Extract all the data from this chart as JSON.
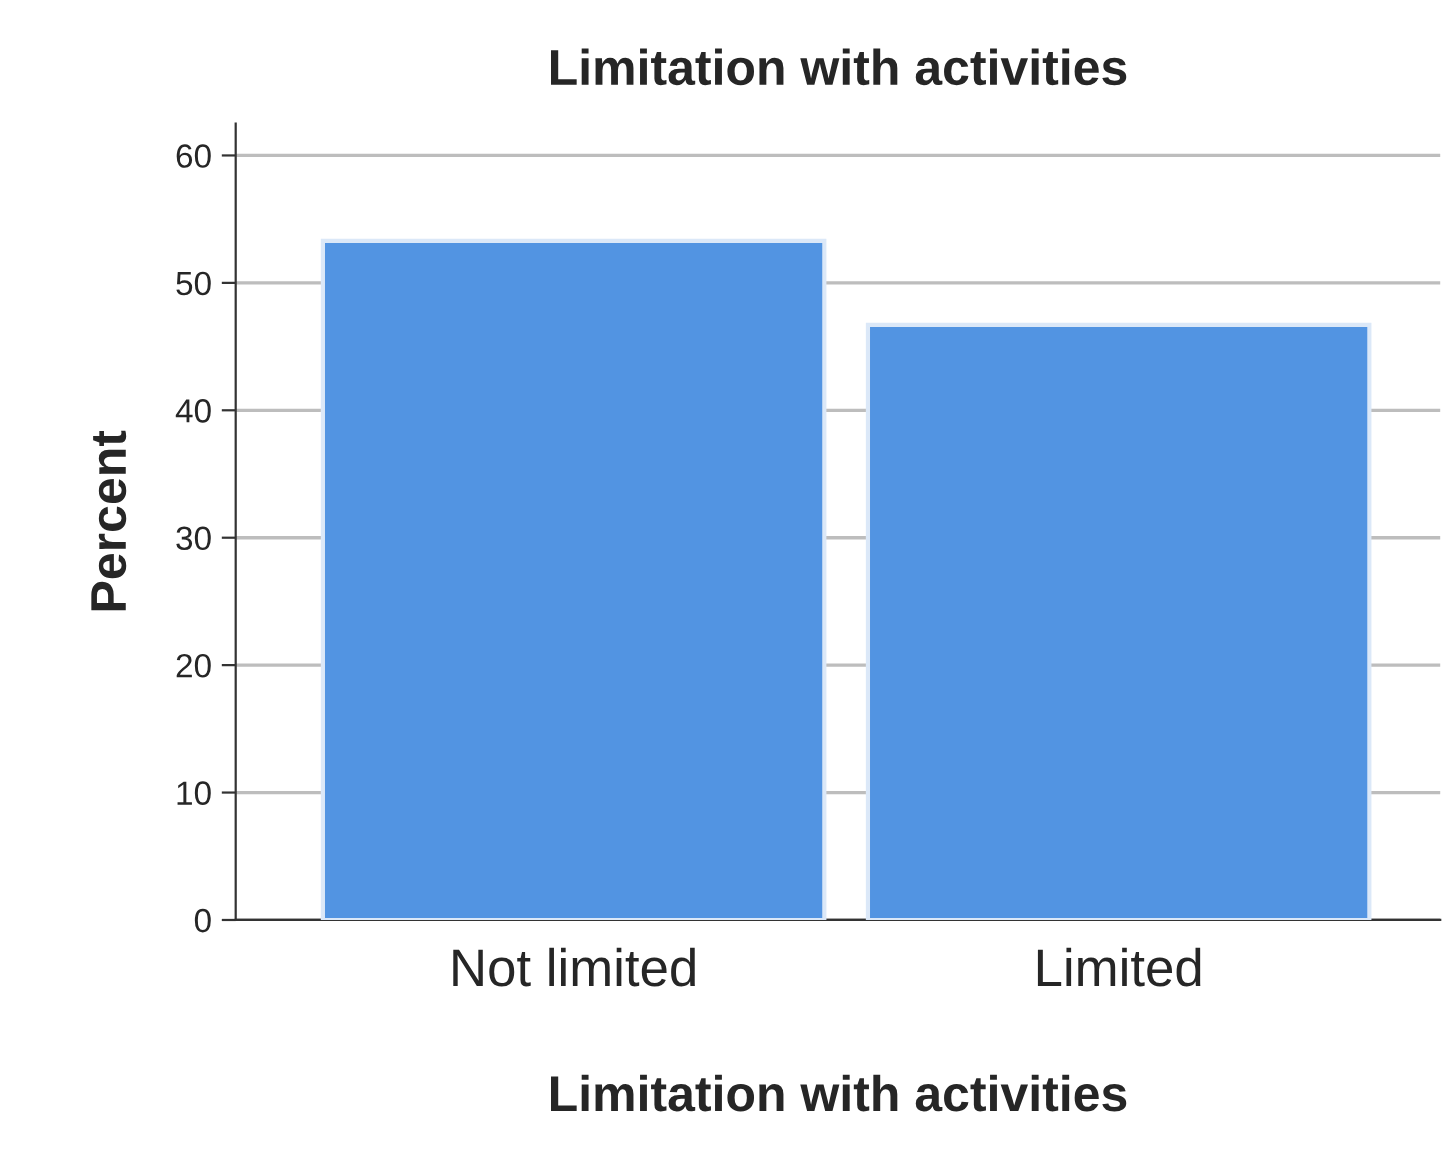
{
  "chart_data": {
    "type": "bar",
    "title": "Limitation with activities",
    "xlabel": "Limitation with activities",
    "ylabel": "Percent",
    "categories": [
      "Not limited",
      "Limited"
    ],
    "values": [
      53.3,
      46.7
    ],
    "color": "#5294e2",
    "ylim": [
      0,
      62.5
    ],
    "yticks": [
      0,
      10,
      20,
      30,
      40,
      50,
      60
    ],
    "grid": "y",
    "legend": false
  }
}
